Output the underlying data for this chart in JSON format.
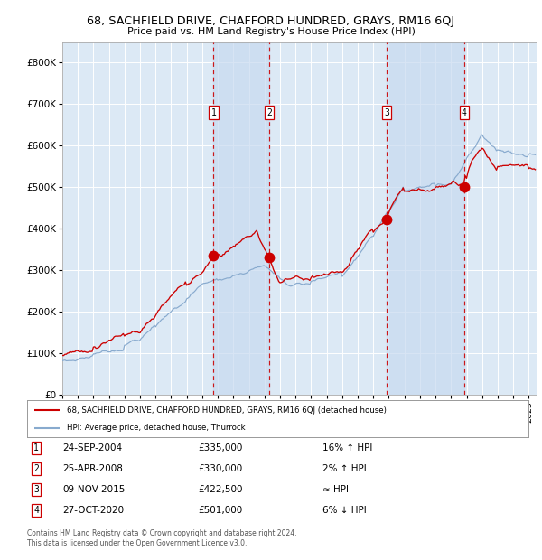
{
  "title": "68, SACHFIELD DRIVE, CHAFFORD HUNDRED, GRAYS, RM16 6QJ",
  "subtitle": "Price paid vs. HM Land Registry's House Price Index (HPI)",
  "background_color": "#dce9f5",
  "ylim": [
    0,
    850000
  ],
  "yticks": [
    0,
    100000,
    200000,
    300000,
    400000,
    500000,
    600000,
    700000,
    800000
  ],
  "ytick_labels": [
    "£0",
    "£100K",
    "£200K",
    "£300K",
    "£400K",
    "£500K",
    "£600K",
    "£700K",
    "£800K"
  ],
  "xmin": 1995.0,
  "xmax": 2025.5,
  "year_ticks": [
    1995,
    1996,
    1997,
    1998,
    1999,
    2000,
    2001,
    2002,
    2003,
    2004,
    2005,
    2006,
    2007,
    2008,
    2009,
    2010,
    2011,
    2012,
    2013,
    2014,
    2015,
    2016,
    2017,
    2018,
    2019,
    2020,
    2021,
    2022,
    2023,
    2024,
    2025
  ],
  "sale_dates_num": [
    2004.73,
    2008.32,
    2015.86,
    2020.83
  ],
  "sale_prices": [
    335000,
    330000,
    422500,
    501000
  ],
  "sale_labels": [
    "1",
    "2",
    "3",
    "4"
  ],
  "marker_num_y": 680000,
  "legend_red": "68, SACHFIELD DRIVE, CHAFFORD HUNDRED, GRAYS, RM16 6QJ (detached house)",
  "legend_blue": "HPI: Average price, detached house, Thurrock",
  "table_rows": [
    [
      "1",
      "24-SEP-2004",
      "£335,000",
      "16% ↑ HPI"
    ],
    [
      "2",
      "25-APR-2008",
      "£330,000",
      "2% ↑ HPI"
    ],
    [
      "3",
      "09-NOV-2015",
      "£422,500",
      "≈ HPI"
    ],
    [
      "4",
      "27-OCT-2020",
      "£501,000",
      "6% ↓ HPI"
    ]
  ],
  "footer_line1": "Contains HM Land Registry data © Crown copyright and database right 2024.",
  "footer_line2": "This data is licensed under the Open Government Licence v3.0.",
  "red_color": "#cc0000",
  "blue_color": "#88aace",
  "shade_color": "#c8daf0"
}
